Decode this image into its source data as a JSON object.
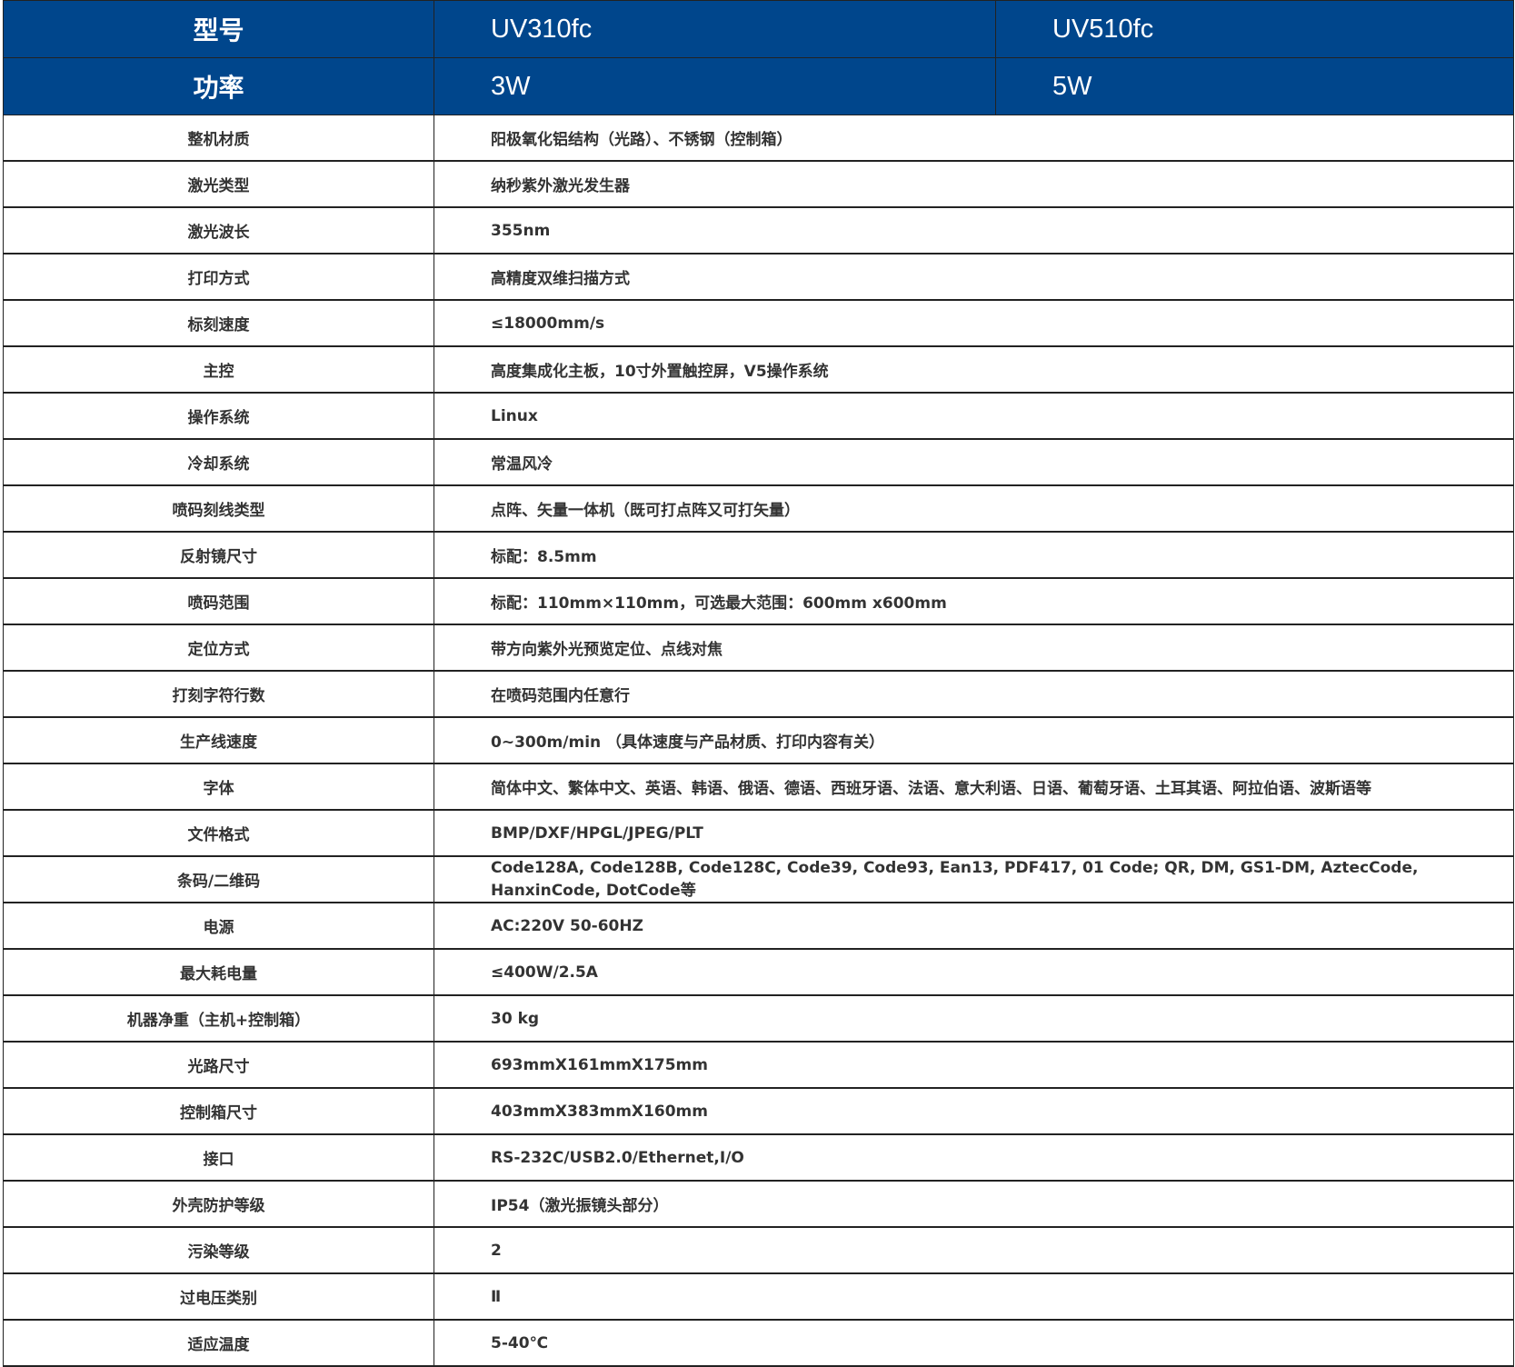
{
  "header_color": "#00468c",
  "header": [
    {
      "label": "型号",
      "values": [
        "UV310fc",
        "UV510fc"
      ]
    },
    {
      "label": "功率",
      "values": [
        "3W",
        "5W"
      ]
    }
  ],
  "specs": [
    {
      "label": "整机材质",
      "value": "阳极氧化铝结构（光路）、不锈钢（控制箱）"
    },
    {
      "label": "激光类型",
      "value": "纳秒紫外激光发生器"
    },
    {
      "label": "激光波长",
      "value": "355nm"
    },
    {
      "label": "打印方式",
      "value": "高精度双维扫描方式"
    },
    {
      "label": "标刻速度",
      "value": "≤18000mm/s"
    },
    {
      "label": "主控",
      "value": "高度集成化主板，10寸外置触控屏，V5操作系统"
    },
    {
      "label": "操作系统",
      "value": "Linux"
    },
    {
      "label": "冷却系统",
      "value": "常温风冷"
    },
    {
      "label": "喷码刻线类型",
      "value": "点阵、矢量一体机（既可打点阵又可打矢量）"
    },
    {
      "label": "反射镜尺寸",
      "value": "标配：8.5mm"
    },
    {
      "label": "喷码范围",
      "value": "标配：110mm×110mm，可选最大范围：600mm x600mm"
    },
    {
      "label": "定位方式",
      "value": "带方向紫外光预览定位、点线对焦"
    },
    {
      "label": "打刻字符行数",
      "value": "在喷码范围内任意行"
    },
    {
      "label": "生产线速度",
      "value": "0~300m/min （具体速度与产品材质、打印内容有关）"
    },
    {
      "label": "字体",
      "value": "简体中文、繁体中文、英语、韩语、俄语、德语、西班牙语、法语、意大利语、日语、葡萄牙语、土耳其语、阿拉伯语、波斯语等"
    },
    {
      "label": "文件格式",
      "value": "BMP/DXF/HPGL/JPEG/PLT"
    },
    {
      "label": "条码/二维码",
      "value": "Code128A, Code128B, Code128C, Code39, Code93, Ean13, PDF417, 01 Code; QR, DM, GS1-DM, AztecCode, HanxinCode, DotCode等"
    },
    {
      "label": "电源",
      "value": "AC:220V 50-60HZ"
    },
    {
      "label": "最大耗电量",
      "value": "≤400W/2.5A"
    },
    {
      "label": "机器净重（主机+控制箱）",
      "value": "30 kg"
    },
    {
      "label": "光路尺寸",
      "value": "693mmX161mmX175mm"
    },
    {
      "label": "控制箱尺寸",
      "value": "403mmX383mmX160mm"
    },
    {
      "label": "接口",
      "value": "RS-232C/USB2.0/Ethernet,I/O"
    },
    {
      "label": "外壳防护等级",
      "value": "IP54（激光振镜头部分）"
    },
    {
      "label": "污染等级",
      "value": "2"
    },
    {
      "label": "过电压类别",
      "value": "Ⅱ"
    },
    {
      "label": "适应温度",
      "value": "5-40℃"
    }
  ]
}
